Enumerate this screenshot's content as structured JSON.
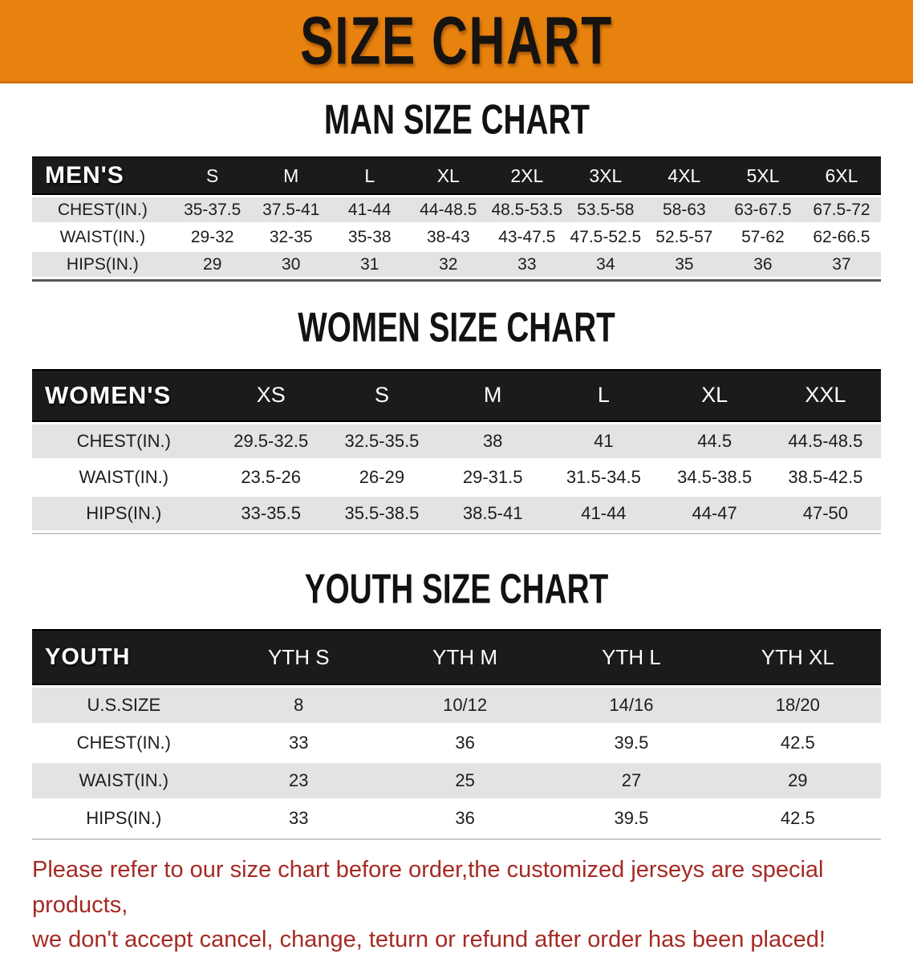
{
  "banner": {
    "title": "SIZE CHART"
  },
  "colors": {
    "banner_orange": "#e8820e",
    "header_black": "#1b1b1b",
    "row_gray": "#e3e3e3",
    "note_red": "#a52a24"
  },
  "sections": [
    {
      "heading": "MAN SIZE CHART",
      "table": {
        "corner": "MEN'S",
        "columns": [
          "S",
          "M",
          "L",
          "XL",
          "2XL",
          "3XL",
          "4XL",
          "5XL",
          "6XL"
        ],
        "rows": [
          {
            "label": "CHEST(IN.)",
            "values": [
              "35-37.5",
              "37.5-41",
              "41-44",
              "44-48.5",
              "48.5-53.5",
              "53.5-58",
              "58-63",
              "63-67.5",
              "67.5-72"
            ]
          },
          {
            "label": "WAIST(IN.)",
            "values": [
              "29-32",
              "32-35",
              "35-38",
              "38-43",
              "43-47.5",
              "47.5-52.5",
              "52.5-57",
              "57-62",
              "62-66.5"
            ]
          },
          {
            "label": "HIPS(IN.)",
            "values": [
              "29",
              "30",
              "31",
              "32",
              "33",
              "34",
              "35",
              "36",
              "37"
            ]
          }
        ]
      }
    },
    {
      "heading": "WOMEN SIZE CHART",
      "table": {
        "corner": "WOMEN'S",
        "columns": [
          "XS",
          "S",
          "M",
          "L",
          "XL",
          "XXL"
        ],
        "rows": [
          {
            "label": "CHEST(IN.)",
            "values": [
              "29.5-32.5",
              "32.5-35.5",
              "38",
              "41",
              "44.5",
              "44.5-48.5"
            ]
          },
          {
            "label": "WAIST(IN.)",
            "values": [
              "23.5-26",
              "26-29",
              "29-31.5",
              "31.5-34.5",
              "34.5-38.5",
              "38.5-42.5"
            ]
          },
          {
            "label": "HIPS(IN.)",
            "values": [
              "33-35.5",
              "35.5-38.5",
              "38.5-41",
              "41-44",
              "44-47",
              "47-50"
            ]
          }
        ]
      }
    },
    {
      "heading": "YOUTH SIZE CHART",
      "table": {
        "corner": "YOUTH",
        "columns": [
          "YTH S",
          "YTH M",
          "YTH L",
          "YTH XL"
        ],
        "rows": [
          {
            "label": "U.S.SIZE",
            "values": [
              "8",
              "10/12",
              "14/16",
              "18/20"
            ]
          },
          {
            "label": "CHEST(IN.)",
            "values": [
              "33",
              "36",
              "39.5",
              "42.5"
            ]
          },
          {
            "label": "WAIST(IN.)",
            "values": [
              "23",
              "25",
              "27",
              "29"
            ]
          },
          {
            "label": "HIPS(IN.)",
            "values": [
              "33",
              "36",
              "39.5",
              "42.5"
            ]
          }
        ]
      }
    }
  ],
  "note": {
    "lines": [
      "Please refer to our size chart before order,the customized jerseys are special products,",
      "we don't accept cancel, change, teturn or refund after order has been placed!"
    ]
  }
}
